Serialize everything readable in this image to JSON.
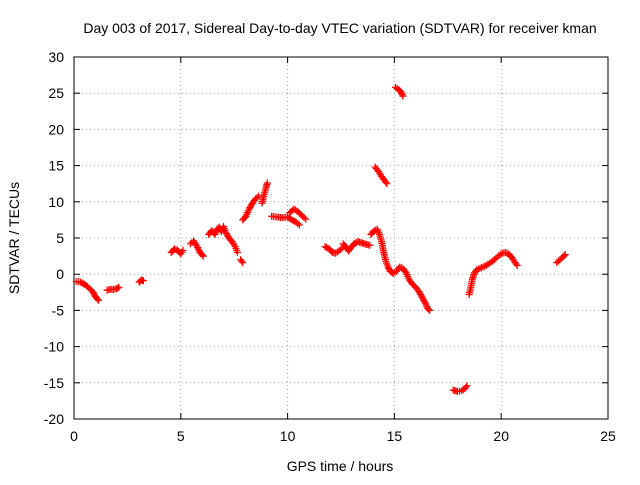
{
  "chart_data": {
    "type": "scatter",
    "title": "Day 003 of 2017, Sidereal Day-to-day VTEC variation (SDTVAR) for receiver kman",
    "xlabel": "GPS time / hours",
    "ylabel": "SDTVAR / TECUs",
    "xlim": [
      0,
      25
    ],
    "ylim": [
      -20,
      30
    ],
    "x_ticks": [
      0,
      5,
      10,
      15,
      20,
      25
    ],
    "y_ticks": [
      -20,
      -15,
      -10,
      -5,
      0,
      5,
      10,
      15,
      20,
      25,
      30
    ],
    "grid": true,
    "legend": "none",
    "marker": "plus",
    "colors": {
      "series": "#ff0000",
      "grid": "#a0a0a0",
      "axis": "#000000"
    },
    "series": [
      {
        "name": "kman",
        "arcs": [
          [
            [
              0.1,
              -1.0
            ],
            [
              0.3,
              -1.1
            ],
            [
              0.5,
              -1.4
            ],
            [
              0.7,
              -1.9
            ],
            [
              0.9,
              -2.5
            ],
            [
              1.0,
              -3.1
            ],
            [
              1.15,
              -3.6
            ]
          ],
          [
            [
              1.55,
              -2.2
            ],
            [
              1.7,
              -2.1
            ],
            [
              1.85,
              -2.1
            ],
            [
              2.0,
              -2.0
            ],
            [
              2.1,
              -1.8
            ]
          ],
          [
            [
              3.05,
              -1.1
            ],
            [
              3.15,
              -0.8
            ],
            [
              3.25,
              -0.9
            ]
          ],
          [
            [
              4.55,
              3.0
            ],
            [
              4.7,
              3.5
            ],
            [
              4.85,
              3.3
            ],
            [
              5.0,
              2.8
            ],
            [
              5.1,
              3.3
            ]
          ],
          [
            [
              5.45,
              4.2
            ],
            [
              5.6,
              4.6
            ],
            [
              5.75,
              3.9
            ],
            [
              5.9,
              3.0
            ],
            [
              6.05,
              2.5
            ]
          ],
          [
            [
              6.3,
              5.5
            ],
            [
              6.45,
              6.0
            ],
            [
              6.6,
              5.5
            ],
            [
              6.7,
              6.2
            ],
            [
              6.8,
              6.5
            ],
            [
              6.9,
              5.9
            ],
            [
              7.0,
              6.6
            ],
            [
              7.1,
              5.8
            ],
            [
              7.25,
              5.0
            ],
            [
              7.4,
              4.5
            ],
            [
              7.55,
              3.8
            ],
            [
              7.65,
              3.0
            ]
          ],
          [
            [
              7.8,
              2.0
            ],
            [
              7.9,
              1.6
            ]
          ],
          [
            [
              7.9,
              7.5
            ],
            [
              8.05,
              8.0
            ],
            [
              8.2,
              9.0
            ],
            [
              8.35,
              9.8
            ],
            [
              8.5,
              10.4
            ],
            [
              8.65,
              10.8
            ]
          ],
          [
            [
              8.8,
              9.8
            ],
            [
              8.9,
              11.0
            ],
            [
              9.0,
              12.0
            ],
            [
              9.05,
              12.6
            ]
          ],
          [
            [
              9.25,
              8.0
            ],
            [
              9.5,
              7.9
            ],
            [
              9.75,
              7.8
            ],
            [
              10.0,
              7.9
            ],
            [
              10.2,
              7.5
            ],
            [
              10.4,
              7.2
            ],
            [
              10.55,
              6.8
            ]
          ],
          [
            [
              10.1,
              8.5
            ],
            [
              10.3,
              9.0
            ],
            [
              10.5,
              8.6
            ],
            [
              10.7,
              8.0
            ],
            [
              10.85,
              7.6
            ]
          ],
          [
            [
              11.75,
              3.8
            ],
            [
              11.95,
              3.5
            ],
            [
              12.1,
              3.0
            ],
            [
              12.25,
              2.9
            ],
            [
              12.4,
              3.2
            ],
            [
              12.55,
              3.6
            ]
          ],
          [
            [
              12.6,
              4.2
            ],
            [
              12.75,
              3.7
            ],
            [
              12.85,
              3.2
            ],
            [
              12.95,
              3.6
            ],
            [
              13.1,
              4.2
            ],
            [
              13.3,
              4.5
            ],
            [
              13.5,
              4.3
            ],
            [
              13.7,
              4.1
            ],
            [
              13.85,
              4.0
            ]
          ],
          [
            [
              13.9,
              5.5
            ],
            [
              14.05,
              6.0
            ],
            [
              14.2,
              6.2
            ],
            [
              14.3,
              5.5
            ],
            [
              14.4,
              4.5
            ],
            [
              14.5,
              3.0
            ],
            [
              14.6,
              1.8
            ],
            [
              14.7,
              1.0
            ],
            [
              14.8,
              0.4
            ],
            [
              14.9,
              0.2
            ]
          ],
          [
            [
              14.95,
              0.1
            ],
            [
              15.1,
              0.4
            ],
            [
              15.25,
              1.0
            ],
            [
              15.4,
              0.8
            ],
            [
              15.55,
              0.2
            ],
            [
              15.7,
              -0.8
            ],
            [
              15.85,
              -1.4
            ],
            [
              16.0,
              -1.8
            ],
            [
              16.15,
              -2.4
            ],
            [
              16.3,
              -3.2
            ],
            [
              16.45,
              -4.0
            ],
            [
              16.55,
              -4.7
            ],
            [
              16.65,
              -5.0
            ]
          ],
          [
            [
              14.1,
              14.8
            ],
            [
              14.25,
              14.2
            ],
            [
              14.4,
              13.5
            ],
            [
              14.55,
              12.9
            ],
            [
              14.65,
              12.5
            ]
          ],
          [
            [
              15.05,
              25.8
            ],
            [
              15.2,
              25.5
            ],
            [
              15.3,
              25.2
            ],
            [
              15.4,
              24.6
            ]
          ],
          [
            [
              17.75,
              -16.0
            ],
            [
              17.95,
              -16.2
            ],
            [
              18.15,
              -16.1
            ],
            [
              18.3,
              -15.8
            ],
            [
              18.4,
              -15.4
            ]
          ],
          [
            [
              18.5,
              -2.8
            ],
            [
              18.58,
              -1.8
            ],
            [
              18.65,
              -0.7
            ],
            [
              18.75,
              0.2
            ],
            [
              18.85,
              0.6
            ],
            [
              19.0,
              0.8
            ],
            [
              19.15,
              1.0
            ],
            [
              19.3,
              1.2
            ],
            [
              19.45,
              1.5
            ],
            [
              19.6,
              1.8
            ],
            [
              19.75,
              2.2
            ],
            [
              19.9,
              2.6
            ],
            [
              20.05,
              2.9
            ],
            [
              20.2,
              3.0
            ],
            [
              20.35,
              2.8
            ],
            [
              20.5,
              2.3
            ],
            [
              20.65,
              1.6
            ],
            [
              20.75,
              1.2
            ]
          ],
          [
            [
              22.6,
              1.6
            ],
            [
              22.75,
              2.0
            ],
            [
              22.9,
              2.4
            ],
            [
              23.0,
              2.7
            ]
          ]
        ]
      }
    ]
  }
}
